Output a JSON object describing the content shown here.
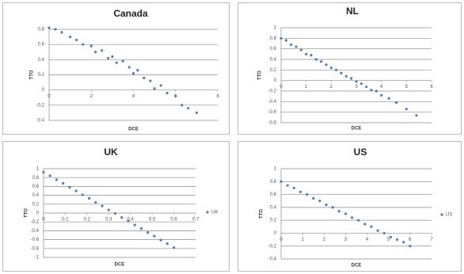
{
  "chart_data": [
    {
      "type": "scatter",
      "title": "Canada",
      "xlabel": "DCE",
      "ylabel": "TTO",
      "grid": true,
      "legend": null,
      "xlim": [
        0,
        8
      ],
      "xticks": [
        0,
        2,
        4,
        6,
        8
      ],
      "ylim": [
        -0.4,
        0.8
      ],
      "yticks": [
        0.8,
        0.6,
        0.4,
        0.2,
        0,
        -0.2,
        -0.4
      ],
      "series": [
        {
          "color": "#4a7ebb",
          "x": [
            0,
            0.3,
            0.6,
            1,
            1.3,
            1.6,
            2,
            2.2,
            2.5,
            2.8,
            3,
            3.2,
            3.5,
            3.8,
            4,
            4.2,
            4.5,
            4.8,
            5,
            5.3,
            5.6,
            6,
            6.3,
            6.6,
            7
          ],
          "values": [
            0.82,
            0.8,
            0.76,
            0.7,
            0.66,
            0.6,
            0.58,
            0.5,
            0.52,
            0.42,
            0.44,
            0.36,
            0.38,
            0.3,
            0.22,
            0.26,
            0.16,
            0.12,
            0.02,
            0.06,
            -0.04,
            -0.08,
            -0.2,
            -0.24,
            -0.3
          ]
        }
      ]
    },
    {
      "type": "scatter",
      "title": "NL",
      "xlabel": "DCE",
      "ylabel": "TTO",
      "grid": true,
      "legend": null,
      "xlim": [
        0,
        6
      ],
      "xticks": [
        0,
        1,
        2,
        3,
        4,
        5,
        6
      ],
      "ylim": [
        -0.8,
        1
      ],
      "yticks": [
        1,
        0.8,
        0.6,
        0.4,
        0.2,
        0,
        -0.2,
        -0.4,
        -0.6,
        -0.8
      ],
      "series": [
        {
          "color": "#4a7ebb",
          "x": [
            0,
            0.2,
            0.4,
            0.6,
            0.8,
            1,
            1.2,
            1.4,
            1.6,
            1.8,
            2,
            2.2,
            2.4,
            2.6,
            2.8,
            3,
            3.2,
            3.4,
            3.6,
            3.8,
            4,
            4.3,
            4.6,
            5,
            5.4
          ],
          "values": [
            0.8,
            0.76,
            0.68,
            0.64,
            0.58,
            0.5,
            0.48,
            0.4,
            0.36,
            0.3,
            0.24,
            0.2,
            0.14,
            0.08,
            0.04,
            -0.02,
            -0.06,
            -0.12,
            -0.18,
            -0.2,
            -0.28,
            -0.34,
            -0.42,
            -0.54,
            -0.66
          ]
        }
      ]
    },
    {
      "type": "scatter",
      "title": "UK",
      "xlabel": "DCE",
      "ylabel": "TTO",
      "grid": true,
      "legend": "right",
      "xlim": [
        0,
        0.7
      ],
      "xticks": [
        0,
        0.1,
        0.2,
        0.3,
        0.4,
        0.5,
        0.6,
        0.7
      ],
      "ylim": [
        -1,
        1
      ],
      "yticks": [
        1,
        0.8,
        0.6,
        0.4,
        0.2,
        0,
        -0.2,
        -0.4,
        -0.6,
        -0.8,
        -1
      ],
      "series": [
        {
          "name": "UK",
          "color": "#4a7ebb",
          "x": [
            0,
            0.03,
            0.06,
            0.09,
            0.12,
            0.15,
            0.18,
            0.21,
            0.24,
            0.27,
            0.3,
            0.33,
            0.36,
            0.39,
            0.42,
            0.45,
            0.48,
            0.51,
            0.54,
            0.57,
            0.6
          ],
          "values": [
            0.92,
            0.84,
            0.75,
            0.67,
            0.58,
            0.5,
            0.41,
            0.33,
            0.24,
            0.16,
            0.07,
            -0.01,
            -0.1,
            -0.18,
            -0.27,
            -0.35,
            -0.44,
            -0.52,
            -0.61,
            -0.69,
            -0.78
          ]
        }
      ]
    },
    {
      "type": "scatter",
      "title": "US",
      "xlabel": "DCE",
      "ylabel": "TTO",
      "grid": true,
      "legend": "right",
      "xlim": [
        0,
        7
      ],
      "xticks": [
        0,
        1,
        2,
        3,
        4,
        5,
        6,
        7
      ],
      "ylim": [
        -0.4,
        1
      ],
      "yticks": [
        1,
        0.8,
        0.6,
        0.4,
        0.2,
        0,
        -0.2,
        -0.4
      ],
      "series": [
        {
          "name": "US",
          "color": "#4a7ebb",
          "x": [
            0,
            0.3,
            0.6,
            0.9,
            1.2,
            1.5,
            1.8,
            2.1,
            2.4,
            2.7,
            3,
            3.3,
            3.6,
            3.9,
            4.2,
            4.5,
            4.8,
            5.1,
            5.4,
            5.7,
            6
          ],
          "values": [
            0.8,
            0.74,
            0.7,
            0.64,
            0.6,
            0.54,
            0.5,
            0.44,
            0.4,
            0.34,
            0.3,
            0.24,
            0.2,
            0.14,
            0.1,
            0.04,
            0,
            -0.06,
            -0.1,
            -0.14,
            -0.2
          ]
        }
      ]
    }
  ]
}
